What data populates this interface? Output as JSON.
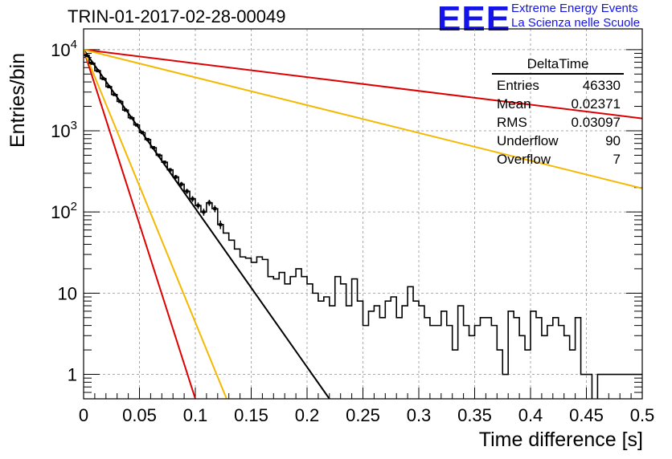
{
  "header": {
    "title": "TRIN-01-2017-02-28-00049",
    "logo": "EEE",
    "logo_line1": "Extreme Energy Events",
    "logo_line2": "La Scienza nelle Scuole"
  },
  "stats_box": {
    "name": "DeltaTime",
    "rows": [
      {
        "label": "Entries",
        "value": "46330"
      },
      {
        "label": "Mean",
        "value": "0.02371"
      },
      {
        "label": "RMS",
        "value": "0.03097"
      },
      {
        "label": "Underflow",
        "value": "90"
      },
      {
        "label": "Overflow",
        "value": "7"
      }
    ]
  },
  "chart_data": {
    "type": "line",
    "title": "TRIN-01-2017-02-28-00049",
    "xlabel": "Time difference [s]",
    "ylabel": "Entries/bin",
    "xlim": [
      0,
      0.5
    ],
    "ylim": [
      0.5,
      18000
    ],
    "yscale": "log",
    "grid": true,
    "xticks": [
      "0",
      "0.05",
      "0.1",
      "0.15",
      "0.2",
      "0.25",
      "0.3",
      "0.35",
      "0.4",
      "0.45",
      "0.5"
    ],
    "yticks": [
      {
        "value": 1,
        "label": "1"
      },
      {
        "value": 10,
        "label": "10"
      },
      {
        "value": 100,
        "label": "10^2"
      },
      {
        "value": 1000,
        "label": "10^3"
      },
      {
        "value": 10000,
        "label": "10^4"
      }
    ],
    "bin_width": 0.005,
    "histogram": [
      8500,
      6800,
      5500,
      4400,
      3500,
      2800,
      2300,
      1800,
      1450,
      1180,
      950,
      780,
      620,
      500,
      410,
      330,
      270,
      220,
      180,
      145,
      120,
      100,
      130,
      110,
      70,
      55,
      45,
      35,
      28,
      27,
      24,
      28,
      26,
      16,
      15,
      18,
      13,
      16,
      20,
      16,
      13,
      10,
      8,
      9,
      7,
      16,
      13,
      7,
      15,
      8,
      4,
      6,
      7,
      5,
      8,
      9,
      5,
      7,
      12,
      8,
      7,
      5,
      4,
      4,
      6,
      4,
      2,
      7,
      4,
      3,
      4,
      5,
      5,
      4,
      2,
      1,
      6,
      5,
      3,
      2,
      6,
      5,
      3,
      4,
      5,
      4,
      3,
      2,
      5,
      1,
      1,
      0,
      1,
      1,
      1,
      1,
      1,
      1,
      1,
      1
    ],
    "series": [
      {
        "color": "#000000",
        "points": [
          [
            0,
            10000
          ],
          [
            0.22,
            0.5
          ]
        ]
      },
      {
        "color": "#dd0000",
        "points": [
          [
            0,
            10000
          ],
          [
            0.1,
            0.5
          ]
        ]
      },
      {
        "color": "#f5b800",
        "points": [
          [
            0,
            10000
          ],
          [
            0.128,
            0.5
          ]
        ]
      },
      {
        "color": "#dd0000",
        "points": [
          [
            0,
            10000
          ],
          [
            0.5,
            1420
          ]
        ]
      },
      {
        "color": "#f5b800",
        "points": [
          [
            0,
            10000
          ],
          [
            0.5,
            195
          ]
        ]
      }
    ]
  }
}
